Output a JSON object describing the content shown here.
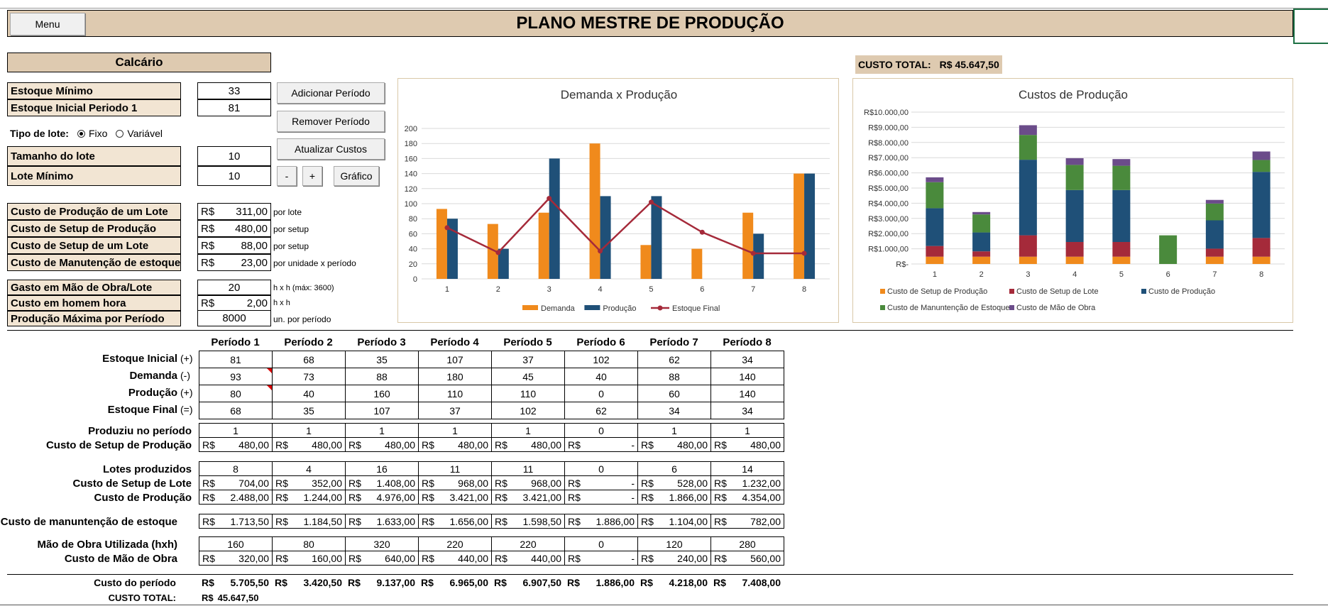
{
  "menu_label": "Menu",
  "title": "PLANO MESTRE DE PRODUÇÃO",
  "product": "Calcário",
  "custo_total_top": {
    "label": "CUSTO TOTAL:",
    "value": "R$  45.647,50"
  },
  "params": {
    "estoque_minimo": {
      "label": "Estoque Mínimo",
      "value": "33"
    },
    "estoque_inicial": {
      "label": "Estoque Inicial Periodo 1",
      "value": "81"
    },
    "tipo_lote": {
      "label": "Tipo de lote:",
      "opt_fixo": "Fixo",
      "opt_variavel": "Variável"
    },
    "tamanho_lote": {
      "label": "Tamanho do lote",
      "value": "10"
    },
    "lote_minimo": {
      "label": "Lote Mínimo",
      "value": "10"
    },
    "custo_producao_lote": {
      "label": "Custo de Produção de um Lote",
      "cur": "R$",
      "value": "311,00",
      "unit": "por lote"
    },
    "custo_setup_producao": {
      "label": "Custo de Setup de Produção",
      "cur": "R$",
      "value": "480,00",
      "unit": "por setup"
    },
    "custo_setup_lote": {
      "label": "Custo de Setup de um Lote",
      "cur": "R$",
      "value": "88,00",
      "unit": "por setup"
    },
    "custo_manutencao": {
      "label": "Custo de Manutenção de estoque",
      "cur": "R$",
      "value": "23,00",
      "unit": "por unidade x período"
    },
    "gasto_mao_obra": {
      "label": "Gasto em Mão de Obra/Lote",
      "value": "20",
      "unit": "h x h  (máx: 3600)"
    },
    "custo_homem_hora": {
      "label": "Custo em homem hora",
      "cur": "R$",
      "value": "2,00",
      "unit": "h x h"
    },
    "producao_maxima": {
      "label": "Produção Máxima por Período",
      "value": "8000",
      "unit": "un. por período"
    }
  },
  "buttons": {
    "adicionar": "Adicionar Período",
    "remover": "Remover Período",
    "atualizar": "Atualizar Custos",
    "minus": "-",
    "plus": "+",
    "grafico": "Gráfico"
  },
  "table": {
    "periods": [
      "Período 1",
      "Período 2",
      "Período 3",
      "Período 4",
      "Período 5",
      "Período 6",
      "Período 7",
      "Período 8"
    ],
    "labels": {
      "estoque_inicial": "Estoque Inicial",
      "estoque_inicial_sign": "(+)",
      "demanda": "Demanda",
      "demanda_sign": "(-)",
      "producao": "Produção",
      "producao_sign": "(+)",
      "estoque_final": "Estoque Final",
      "estoque_final_sign": "(=)",
      "produziu": "Produziu no período",
      "custo_setup_producao": "Custo de Setup de Produção",
      "lotes": "Lotes produzidos",
      "custo_setup_lote": "Custo de Setup de Lote",
      "custo_producao": "Custo de Produção",
      "custo_manutencao": "Custo de manuntenção de estoque",
      "mao_obra": "Mão de Obra Utilizada (hxh)",
      "custo_mao_obra": "Custo de Mão de Obra",
      "custo_periodo": "Custo do período",
      "custo_total": "CUSTO TOTAL:"
    },
    "currency": "R$",
    "estoque_inicial": [
      "81",
      "68",
      "35",
      "107",
      "37",
      "102",
      "62",
      "34"
    ],
    "demanda": [
      "93",
      "73",
      "88",
      "180",
      "45",
      "40",
      "88",
      "140"
    ],
    "producao": [
      "80",
      "40",
      "160",
      "110",
      "110",
      "0",
      "60",
      "140"
    ],
    "estoque_final": [
      "68",
      "35",
      "107",
      "37",
      "102",
      "62",
      "34",
      "34"
    ],
    "produziu": [
      "1",
      "1",
      "1",
      "1",
      "1",
      "0",
      "1",
      "1"
    ],
    "custo_setup_producao": [
      "480,00",
      "480,00",
      "480,00",
      "480,00",
      "480,00",
      "-",
      "480,00",
      "480,00"
    ],
    "lotes": [
      "8",
      "4",
      "16",
      "11",
      "11",
      "0",
      "6",
      "14"
    ],
    "custo_setup_lote": [
      "704,00",
      "352,00",
      "1.408,00",
      "968,00",
      "968,00",
      "-",
      "528,00",
      "1.232,00"
    ],
    "custo_producao": [
      "2.488,00",
      "1.244,00",
      "4.976,00",
      "3.421,00",
      "3.421,00",
      "-",
      "1.866,00",
      "4.354,00"
    ],
    "custo_manutencao": [
      "1.713,50",
      "1.184,50",
      "1.633,00",
      "1.656,00",
      "1.598,50",
      "1.886,00",
      "1.104,00",
      "782,00"
    ],
    "mao_obra": [
      "160",
      "80",
      "320",
      "220",
      "220",
      "0",
      "120",
      "280"
    ],
    "custo_mao_obra": [
      "320,00",
      "160,00",
      "640,00",
      "440,00",
      "440,00",
      "-",
      "240,00",
      "560,00"
    ],
    "custo_periodo": [
      "5.705,50",
      "3.420,50",
      "9.137,00",
      "6.965,00",
      "6.907,50",
      "1.886,00",
      "4.218,00",
      "7.408,00"
    ],
    "custo_total": "45.647,50"
  },
  "chart_data": [
    {
      "type": "bar",
      "title": "Demanda x Produção",
      "categories": [
        "1",
        "2",
        "3",
        "4",
        "5",
        "6",
        "7",
        "8"
      ],
      "ylim": [
        0,
        200
      ],
      "yticks": [
        0,
        20,
        40,
        60,
        80,
        100,
        120,
        140,
        160,
        180,
        200
      ],
      "series": [
        {
          "name": "Demanda",
          "type": "bar",
          "color": "#f08a1c",
          "values": [
            93,
            73,
            88,
            180,
            45,
            40,
            88,
            140
          ]
        },
        {
          "name": "Produção",
          "type": "bar",
          "color": "#1f5078",
          "values": [
            80,
            40,
            160,
            110,
            110,
            0,
            60,
            140
          ]
        },
        {
          "name": "Estoque Final",
          "type": "line",
          "color": "#a52a3a",
          "values": [
            68,
            35,
            107,
            37,
            102,
            62,
            34,
            34
          ]
        }
      ],
      "grid": true,
      "legend": "bottom"
    },
    {
      "type": "bar",
      "stacked": true,
      "title": "Custos de Produção",
      "categories": [
        "1",
        "2",
        "3",
        "4",
        "5",
        "6",
        "7",
        "8"
      ],
      "ylim": [
        0,
        10000
      ],
      "ytick_labels": [
        "R$-",
        "R$1.000,00",
        "R$2.000,00",
        "R$3.000,00",
        "R$4.000,00",
        "R$5.000,00",
        "R$6.000,00",
        "R$7.000,00",
        "R$8.000,00",
        "R$9.000,00",
        "R$10.000,00"
      ],
      "series": [
        {
          "name": "Custo de Setup de Produção",
          "color": "#f08a1c",
          "values": [
            480,
            480,
            480,
            480,
            480,
            0,
            480,
            480
          ]
        },
        {
          "name": "Custo de Setup de Lote",
          "color": "#a52a3a",
          "values": [
            704,
            352,
            1408,
            968,
            968,
            0,
            528,
            1232
          ]
        },
        {
          "name": "Custo de Produção",
          "color": "#1f5078",
          "values": [
            2488,
            1244,
            4976,
            3421,
            3421,
            0,
            1866,
            4354
          ]
        },
        {
          "name": "Custo de Manuntenção de Estoque",
          "color": "#4a8a3c",
          "values": [
            1713.5,
            1184.5,
            1633,
            1656,
            1598.5,
            1886,
            1104,
            782
          ]
        },
        {
          "name": "Custo de Mão de Obra",
          "color": "#6b4c8a",
          "values": [
            320,
            160,
            640,
            440,
            440,
            0,
            240,
            560
          ]
        }
      ],
      "grid": true,
      "legend": "bottom"
    }
  ]
}
